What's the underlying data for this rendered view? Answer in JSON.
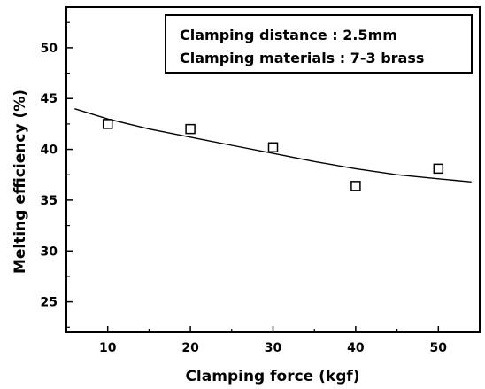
{
  "chart_data": {
    "type": "scatter",
    "title": "",
    "xlabel": "Clamping force (kgf)",
    "ylabel": "Melting efficiency (%)",
    "xlim": [
      5,
      55
    ],
    "ylim": [
      22,
      54
    ],
    "xticks": [
      10,
      20,
      30,
      40,
      50
    ],
    "yticks": [
      25,
      30,
      35,
      40,
      45,
      50
    ],
    "grid": false,
    "legend_placement": "top-right",
    "annotations": [
      "Clamping distance : 2.5mm",
      "Clamping materials : 7-3 brass"
    ],
    "series": [
      {
        "kind": "scatter",
        "marker": "open-square",
        "points": [
          {
            "x": 10,
            "y": 42.5
          },
          {
            "x": 20,
            "y": 42.0
          },
          {
            "x": 30,
            "y": 40.2
          },
          {
            "x": 40,
            "y": 36.4
          },
          {
            "x": 50,
            "y": 38.1
          }
        ]
      },
      {
        "kind": "fit-line",
        "points": [
          {
            "x": 6,
            "y": 44.0
          },
          {
            "x": 10,
            "y": 43.0
          },
          {
            "x": 15,
            "y": 42.0
          },
          {
            "x": 20,
            "y": 41.2
          },
          {
            "x": 25,
            "y": 40.4
          },
          {
            "x": 30,
            "y": 39.6
          },
          {
            "x": 35,
            "y": 38.8
          },
          {
            "x": 40,
            "y": 38.1
          },
          {
            "x": 45,
            "y": 37.5
          },
          {
            "x": 50,
            "y": 37.1
          },
          {
            "x": 54,
            "y": 36.8
          }
        ]
      }
    ]
  }
}
